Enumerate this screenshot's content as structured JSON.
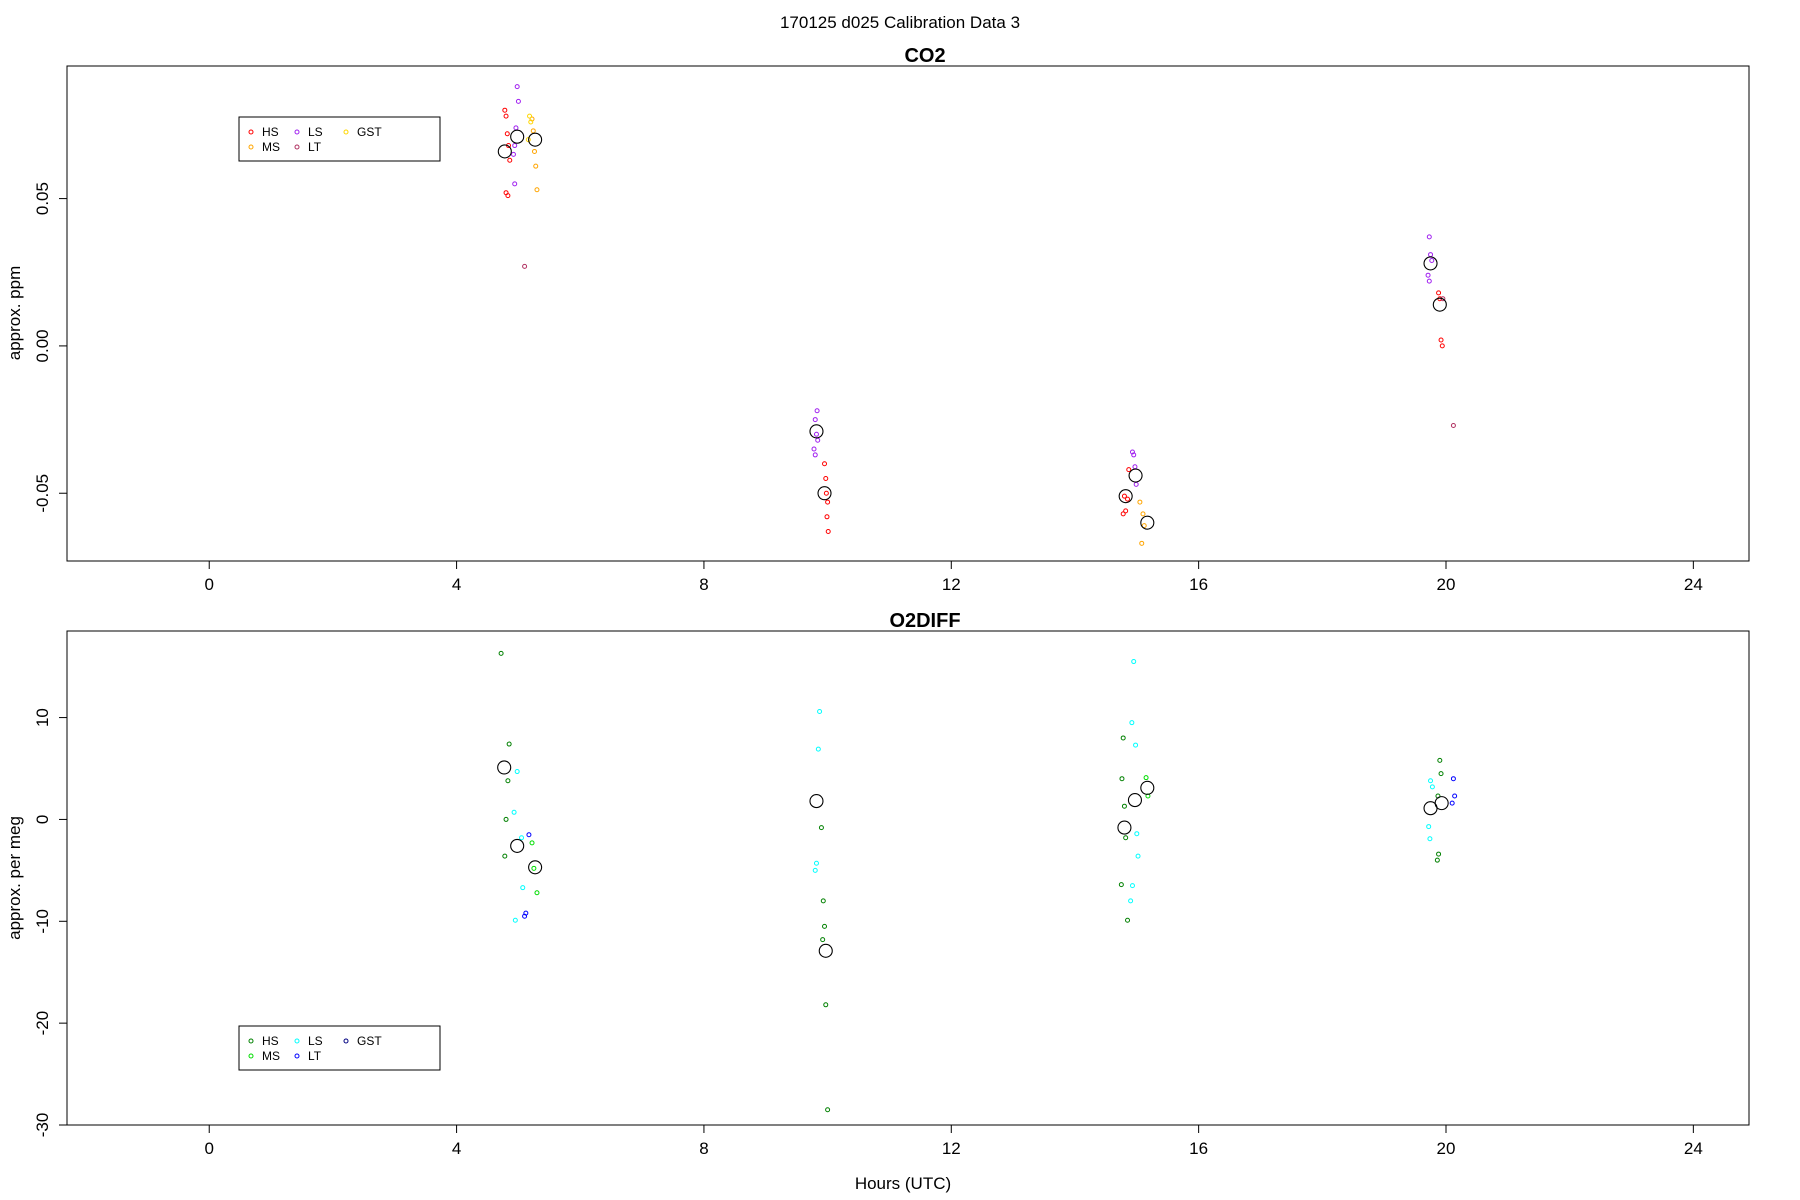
{
  "figure_title": "170125   d025   Calibration Data 3",
  "chart_data": [
    {
      "type": "scatter",
      "title": "CO2",
      "xlabel": "",
      "ylabel": "approx. ppm",
      "xlim": [
        -2.3,
        24.9
      ],
      "ylim": [
        -0.073,
        0.095
      ],
      "x_ticks": [
        0,
        4,
        8,
        12,
        16,
        20,
        24
      ],
      "x_tick_labels": [
        "0",
        "4",
        "8",
        "12",
        "16",
        "20",
        "24"
      ],
      "y_ticks": [
        -0.05,
        0.0,
        0.05
      ],
      "y_tick_labels": [
        "-0.05",
        "0.00",
        "0.05"
      ],
      "legend": {
        "position": "top-left",
        "entries": [
          {
            "label": "HS",
            "color": "#ff0000"
          },
          {
            "label": "MS",
            "color": "#ffa500"
          },
          {
            "label": "LS",
            "color": "#a020f0"
          },
          {
            "label": "LT",
            "color": "#b03060"
          },
          {
            "label": "GST",
            "color": "#ffd700"
          }
        ]
      },
      "series": [
        {
          "name": "HS",
          "color": "#ff0000",
          "points": [
            [
              4.78,
              0.08
            ],
            [
              4.8,
              0.078
            ],
            [
              4.82,
              0.072
            ],
            [
              4.84,
              0.068
            ],
            [
              4.86,
              0.063
            ],
            [
              4.8,
              0.052
            ],
            [
              4.83,
              0.051
            ],
            [
              9.95,
              -0.04
            ],
            [
              9.97,
              -0.045
            ],
            [
              9.98,
              -0.05
            ],
            [
              10.0,
              -0.053
            ],
            [
              9.99,
              -0.058
            ],
            [
              10.01,
              -0.063
            ],
            [
              14.8,
              -0.051
            ],
            [
              14.82,
              -0.056
            ],
            [
              14.78,
              -0.057
            ],
            [
              14.85,
              -0.052
            ],
            [
              14.87,
              -0.042
            ],
            [
              19.88,
              0.018
            ],
            [
              19.9,
              0.016
            ],
            [
              19.92,
              0.002
            ],
            [
              19.94,
              0.0
            ]
          ]
        },
        {
          "name": "MS",
          "color": "#ffa500",
          "points": [
            [
              5.22,
              0.077
            ],
            [
              5.24,
              0.073
            ],
            [
              5.26,
              0.066
            ],
            [
              5.28,
              0.061
            ],
            [
              5.3,
              0.053
            ],
            [
              15.05,
              -0.053
            ],
            [
              15.1,
              -0.057
            ],
            [
              15.12,
              -0.061
            ],
            [
              15.08,
              -0.067
            ]
          ]
        },
        {
          "name": "LS",
          "color": "#a020f0",
          "points": [
            [
              4.98,
              0.088
            ],
            [
              5.0,
              0.083
            ],
            [
              4.96,
              0.074
            ],
            [
              4.94,
              0.068
            ],
            [
              4.92,
              0.065
            ],
            [
              4.94,
              0.055
            ],
            [
              9.83,
              -0.022
            ],
            [
              9.8,
              -0.025
            ],
            [
              9.82,
              -0.03
            ],
            [
              9.84,
              -0.032
            ],
            [
              9.78,
              -0.035
            ],
            [
              9.8,
              -0.037
            ],
            [
              14.93,
              -0.036
            ],
            [
              14.95,
              -0.037
            ],
            [
              14.97,
              -0.041
            ],
            [
              14.99,
              -0.047
            ],
            [
              19.73,
              0.037
            ],
            [
              19.75,
              0.031
            ],
            [
              19.77,
              0.029
            ],
            [
              19.71,
              0.024
            ],
            [
              19.73,
              0.022
            ]
          ]
        },
        {
          "name": "LT",
          "color": "#b03060",
          "points": [
            [
              5.1,
              0.027
            ],
            [
              19.95,
              0.016
            ],
            [
              20.12,
              -0.027
            ]
          ]
        },
        {
          "name": "GST",
          "color": "#ffd700",
          "points": [
            [
              5.18,
              0.078
            ],
            [
              5.2,
              0.076
            ],
            [
              5.16,
              0.07
            ]
          ]
        },
        {
          "name": "mean",
          "color": "#000000",
          "size": "large",
          "points": [
            [
              4.78,
              0.066
            ],
            [
              4.98,
              0.071
            ],
            [
              5.27,
              0.07
            ],
            [
              9.82,
              -0.029
            ],
            [
              9.95,
              -0.05
            ],
            [
              14.82,
              -0.051
            ],
            [
              14.98,
              -0.044
            ],
            [
              15.17,
              -0.06
            ],
            [
              19.75,
              0.028
            ],
            [
              19.9,
              0.014
            ]
          ]
        }
      ]
    },
    {
      "type": "scatter",
      "title": "O2DIFF",
      "xlabel": "Hours (UTC)",
      "ylabel": "approx. per meg",
      "xlim": [
        -2.3,
        24.9
      ],
      "ylim": [
        -30,
        18.5
      ],
      "x_ticks": [
        0,
        4,
        8,
        12,
        16,
        20,
        24
      ],
      "x_tick_labels": [
        "0",
        "4",
        "8",
        "12",
        "16",
        "20",
        "24"
      ],
      "y_ticks": [
        -30,
        -20,
        -10,
        0,
        10
      ],
      "y_tick_labels": [
        "-30",
        "-20",
        "-10",
        "0",
        "10"
      ],
      "legend": {
        "position": "bottom-left",
        "entries": [
          {
            "label": "HS",
            "color": "#008000"
          },
          {
            "label": "MS",
            "color": "#00dd00"
          },
          {
            "label": "LS",
            "color": "#00ffff"
          },
          {
            "label": "LT",
            "color": "#0000ff"
          },
          {
            "label": "GST",
            "color": "#000080"
          }
        ]
      },
      "series": [
        {
          "name": "HS",
          "color": "#008000",
          "points": [
            [
              4.72,
              16.3
            ],
            [
              4.85,
              7.4
            ],
            [
              4.83,
              3.8
            ],
            [
              4.8,
              0.0
            ],
            [
              4.78,
              -3.6
            ],
            [
              9.9,
              -0.8
            ],
            [
              9.93,
              -8.0
            ],
            [
              9.95,
              -10.5
            ],
            [
              9.92,
              -11.8
            ],
            [
              9.97,
              -18.2
            ],
            [
              10.0,
              -28.5
            ],
            [
              14.78,
              8.0
            ],
            [
              14.76,
              4.0
            ],
            [
              14.8,
              1.3
            ],
            [
              14.82,
              -1.8
            ],
            [
              14.75,
              -6.4
            ],
            [
              14.85,
              -9.9
            ],
            [
              19.87,
              2.3
            ],
            [
              19.9,
              5.8
            ],
            [
              19.92,
              4.5
            ],
            [
              19.88,
              -3.4
            ],
            [
              19.86,
              -4.0
            ]
          ]
        },
        {
          "name": "MS",
          "color": "#00dd00",
          "points": [
            [
              5.22,
              -2.3
            ],
            [
              5.25,
              -4.8
            ],
            [
              5.3,
              -7.2
            ],
            [
              15.15,
              4.1
            ],
            [
              15.18,
              2.3
            ]
          ]
        },
        {
          "name": "LS",
          "color": "#00ffff",
          "points": [
            [
              4.98,
              4.7
            ],
            [
              4.93,
              0.7
            ],
            [
              5.05,
              -1.8
            ],
            [
              5.07,
              -6.7
            ],
            [
              4.95,
              -9.9
            ],
            [
              9.87,
              10.6
            ],
            [
              9.85,
              6.9
            ],
            [
              9.82,
              -4.3
            ],
            [
              9.8,
              -5.0
            ],
            [
              14.95,
              15.5
            ],
            [
              14.92,
              9.5
            ],
            [
              14.98,
              7.3
            ],
            [
              15.0,
              -1.4
            ],
            [
              15.02,
              -3.6
            ],
            [
              14.93,
              -6.5
            ],
            [
              14.9,
              -8.0
            ],
            [
              19.75,
              3.8
            ],
            [
              19.78,
              3.2
            ],
            [
              19.72,
              -0.7
            ],
            [
              19.74,
              -1.9
            ]
          ]
        },
        {
          "name": "LT",
          "color": "#0000ff",
          "points": [
            [
              5.17,
              -1.5
            ],
            [
              5.12,
              -9.2
            ],
            [
              5.1,
              -9.5
            ],
            [
              20.12,
              4.0
            ],
            [
              20.14,
              2.3
            ],
            [
              20.1,
              1.6
            ]
          ]
        },
        {
          "name": "GST",
          "color": "#000080",
          "points": []
        },
        {
          "name": "mean",
          "color": "#000000",
          "size": "large",
          "points": [
            [
              4.77,
              5.1
            ],
            [
              4.98,
              -2.6
            ],
            [
              5.27,
              -4.7
            ],
            [
              9.82,
              1.8
            ],
            [
              9.97,
              -12.9
            ],
            [
              14.8,
              -0.8
            ],
            [
              14.97,
              1.9
            ],
            [
              15.17,
              3.1
            ],
            [
              19.75,
              1.1
            ],
            [
              19.93,
              1.6
            ]
          ]
        }
      ]
    }
  ]
}
